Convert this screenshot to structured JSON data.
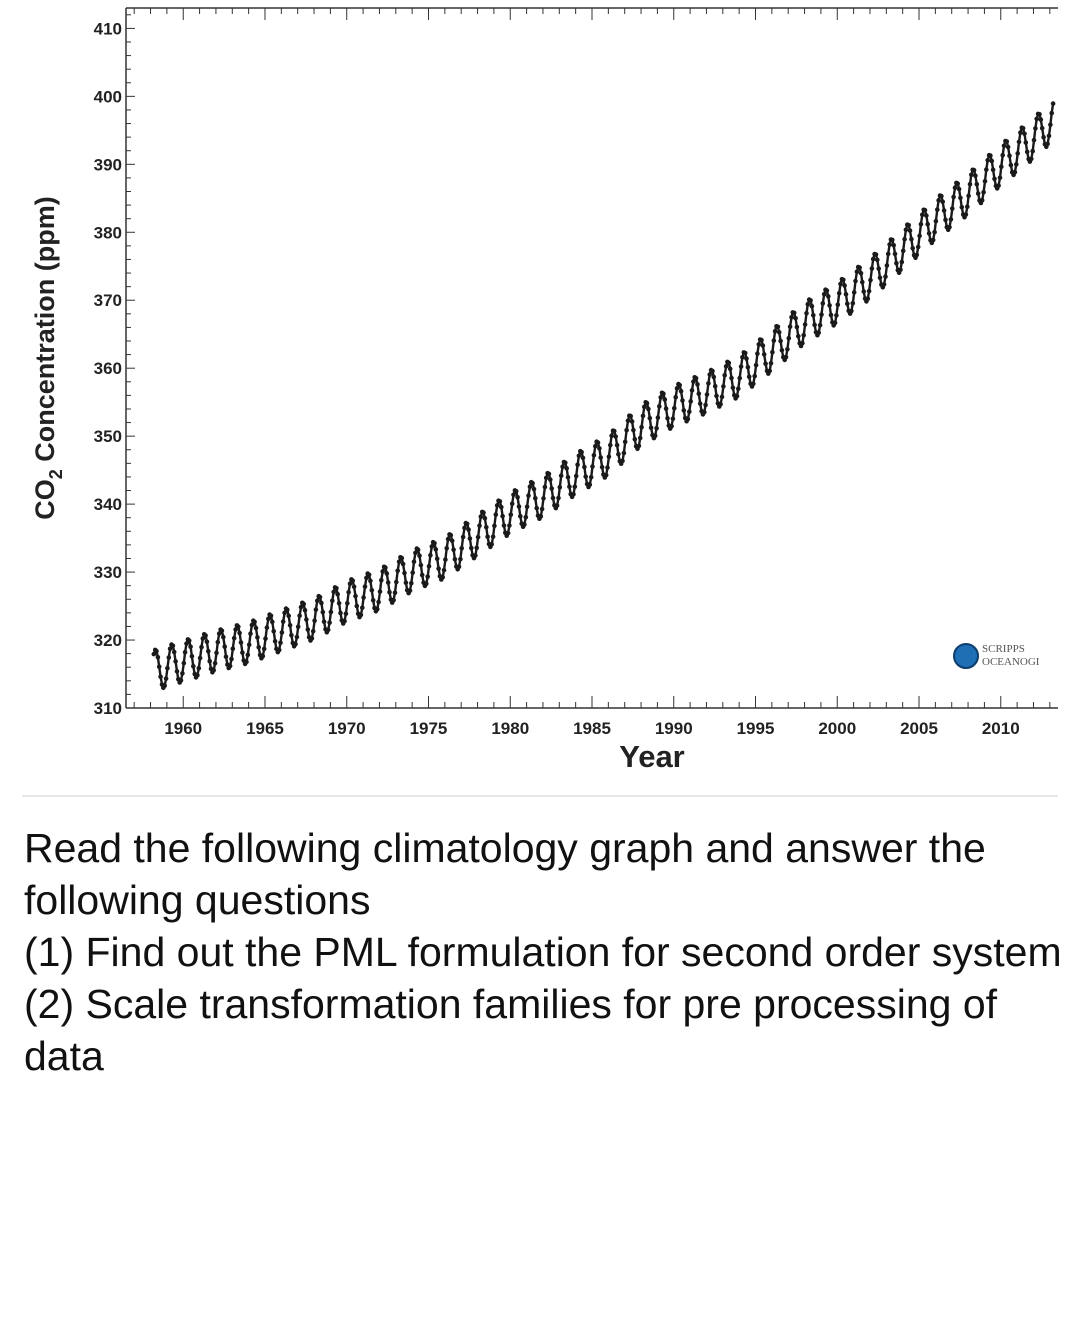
{
  "chart_data": {
    "type": "line",
    "title": "",
    "xlabel": "Year",
    "ylabel": "CO2 Concentration (ppm)",
    "ylabel_main": "CO",
    "ylabel_sub": "2",
    "ylabel_rest": " Concentration (ppm)",
    "xlim": [
      1956.5,
      2013.5
    ],
    "ylim": [
      310,
      413
    ],
    "x_ticks": [
      "1960",
      "1965",
      "1970",
      "1975",
      "1980",
      "1985",
      "1990",
      "1995",
      "2000",
      "2005",
      "2010"
    ],
    "y_ticks": [
      "310",
      "320",
      "330",
      "340",
      "350",
      "360",
      "370",
      "380",
      "390",
      "400",
      "410"
    ],
    "grid": false,
    "series": [
      {
        "color": "#1a1a1a",
        "note_trend": "annual mean with seasonal oscillation (~±3 ppm)",
        "x": [
          1958.2,
          1960,
          1962,
          1964,
          1966,
          1968,
          1970,
          1972,
          1974,
          1976,
          1978,
          1980,
          1982,
          1984,
          1986,
          1988,
          1990,
          1992,
          1994,
          1996,
          1998,
          2000,
          2002,
          2004,
          2006,
          2008,
          2010,
          2012,
          2013.2
        ],
        "y": [
          315.5,
          316.9,
          318.4,
          319.6,
          321.4,
          323.1,
          325.7,
          327.4,
          330.2,
          332.1,
          335.4,
          338.7,
          341.1,
          344.4,
          347.2,
          351.6,
          354.4,
          356.4,
          358.8,
          362.6,
          366.7,
          369.6,
          373.2,
          377.5,
          381.9,
          385.6,
          389.9,
          393.8,
          396.5
        ],
        "seasonal_amplitude": 3
      }
    ]
  },
  "logo": {
    "text_line1": "SCRIPPS",
    "text_line2": "OCEANOGI",
    "accent": "#1f6fb5"
  },
  "question": {
    "line1": "Read the following climatology graph and answer the following questions",
    "line2": "(1) Find out the PML formulation for second order system",
    "line3": "(2) Scale transformation families for pre processing of data"
  }
}
